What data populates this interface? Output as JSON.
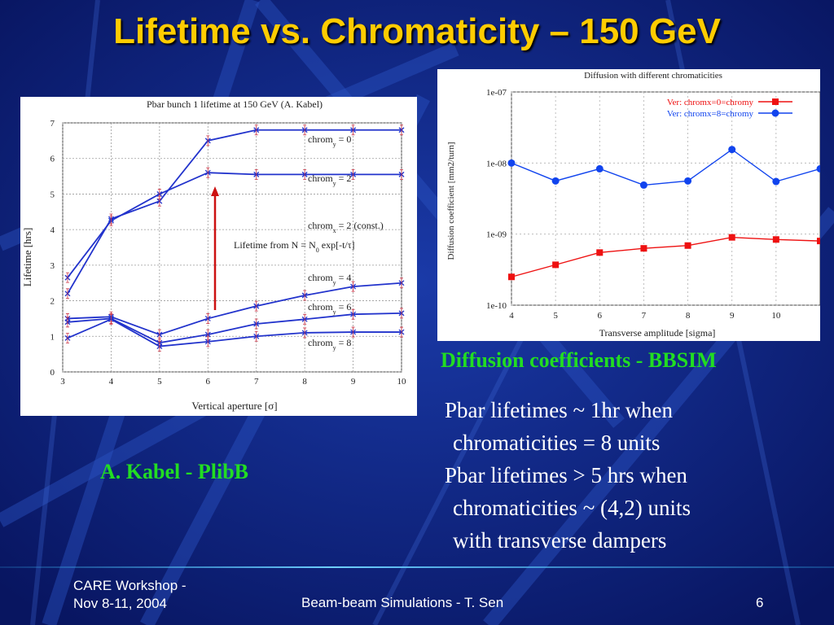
{
  "slide": {
    "title": "Lifetime vs. Chromaticity – 150 GeV",
    "left_caption": "A. Kabel - PlibB",
    "right_caption": "Diffusion coefficients - BBSIM",
    "bullets": [
      "Pbar lifetimes ~ 1hr when",
      "chromaticities = 8 units",
      "Pbar lifetimes > 5 hrs when",
      "chromaticities ~ (4,2) units",
      "with transverse dampers"
    ],
    "footer": {
      "event_line1": "CARE Workshop -",
      "event_line2": "Nov 8-11, 2004",
      "center": "Beam-beam Simulations - T. Sen",
      "page": "6"
    },
    "colors": {
      "background": "#0a1a6e",
      "title": "#ffcc00",
      "caption": "#22dd22"
    }
  },
  "chart_data": [
    {
      "type": "line",
      "title": "Pbar bunch 1 lifetime at 150 GeV (A. Kabel)",
      "xlabel": "Vertical aperture [σ]",
      "ylabel": "Lifetime [hrs]",
      "xlim": [
        3,
        10
      ],
      "ylim": [
        0,
        7
      ],
      "xticks": [
        "3",
        "4",
        "5",
        "6",
        "7",
        "8",
        "9",
        "10"
      ],
      "yticks": [
        "0",
        "1",
        "2",
        "3",
        "4",
        "5",
        "6",
        "7"
      ],
      "grid": true,
      "annotation": "Lifetime from N = N0 exp[-t/τ]",
      "series": [
        {
          "name": "chrom_y = 0",
          "label_main": "chrom",
          "label_sub": "y",
          "label_rest": " = 0",
          "x": [
            3.1,
            4,
            5,
            6,
            7,
            8,
            9,
            10
          ],
          "y": [
            2.2,
            4.3,
            4.8,
            6.5,
            6.8,
            6.8,
            6.8,
            6.8
          ]
        },
        {
          "name": "chrom_y = 2",
          "label_main": "chrom",
          "label_sub": "y",
          "label_rest": " = 2",
          "x": [
            3.1,
            4,
            5,
            6,
            7,
            8,
            9,
            10
          ],
          "y": [
            2.65,
            4.25,
            5.0,
            5.6,
            5.55,
            5.55,
            5.55,
            5.55
          ]
        },
        {
          "name": "chrom_x = 2 (const.)",
          "label_main": "chrom",
          "label_sub": "x",
          "label_rest": " = 2 (const.)",
          "x": [],
          "y": []
        },
        {
          "name": "chrom_y = 4",
          "label_main": "chrom",
          "label_sub": "y",
          "label_rest": " = 4",
          "x": [
            3.1,
            4,
            5,
            6,
            7,
            8,
            9,
            10
          ],
          "y": [
            1.5,
            1.55,
            1.05,
            1.5,
            1.85,
            2.15,
            2.4,
            2.5
          ]
        },
        {
          "name": "chrom_y = 6",
          "label_main": "chrom",
          "label_sub": "y",
          "label_rest": " = 6",
          "x": [
            3.1,
            4,
            5,
            6,
            7,
            8,
            9,
            10
          ],
          "y": [
            1.4,
            1.5,
            0.82,
            1.05,
            1.35,
            1.48,
            1.62,
            1.65
          ]
        },
        {
          "name": "chrom_y = 8",
          "label_main": "chrom",
          "label_sub": "y",
          "label_rest": " = 8",
          "x": [
            3.1,
            4,
            5,
            6,
            7,
            8,
            9,
            10
          ],
          "y": [
            0.95,
            1.48,
            0.72,
            0.85,
            1.0,
            1.1,
            1.12,
            1.12
          ]
        }
      ]
    },
    {
      "type": "line",
      "title": "Diffusion with different chromaticities",
      "xlabel": "Transverse amplitude [sigma]",
      "ylabel": "Diffusion coefficient [mm2/turn]",
      "xlim": [
        4,
        11
      ],
      "ylim": [
        1e-10,
        1e-07
      ],
      "yscale": "log",
      "xticks": [
        "4",
        "5",
        "6",
        "7",
        "8",
        "9",
        "10"
      ],
      "yticks": [
        "1e-10",
        "1e-09",
        "1e-08",
        "1e-07"
      ],
      "grid": true,
      "legend": "top-right",
      "series": [
        {
          "name": "Ver: chromx=0=chromy",
          "color": "#ee1111",
          "marker": "square",
          "x": [
            4,
            5,
            6,
            7,
            8,
            9,
            10,
            11
          ],
          "y": [
            2.5e-10,
            3.7e-10,
            5.5e-10,
            6.3e-10,
            6.9e-10,
            9e-10,
            8.4e-10,
            8e-10
          ]
        },
        {
          "name": "Ver: chromx=8=chromy",
          "color": "#1144ee",
          "marker": "circle",
          "x": [
            4,
            5,
            6,
            7,
            8,
            9,
            10,
            11
          ],
          "y": [
            1e-08,
            5.6e-09,
            8.3e-09,
            4.9e-09,
            5.6e-09,
            1.55e-08,
            5.5e-09,
            8.3e-09
          ]
        }
      ]
    }
  ]
}
